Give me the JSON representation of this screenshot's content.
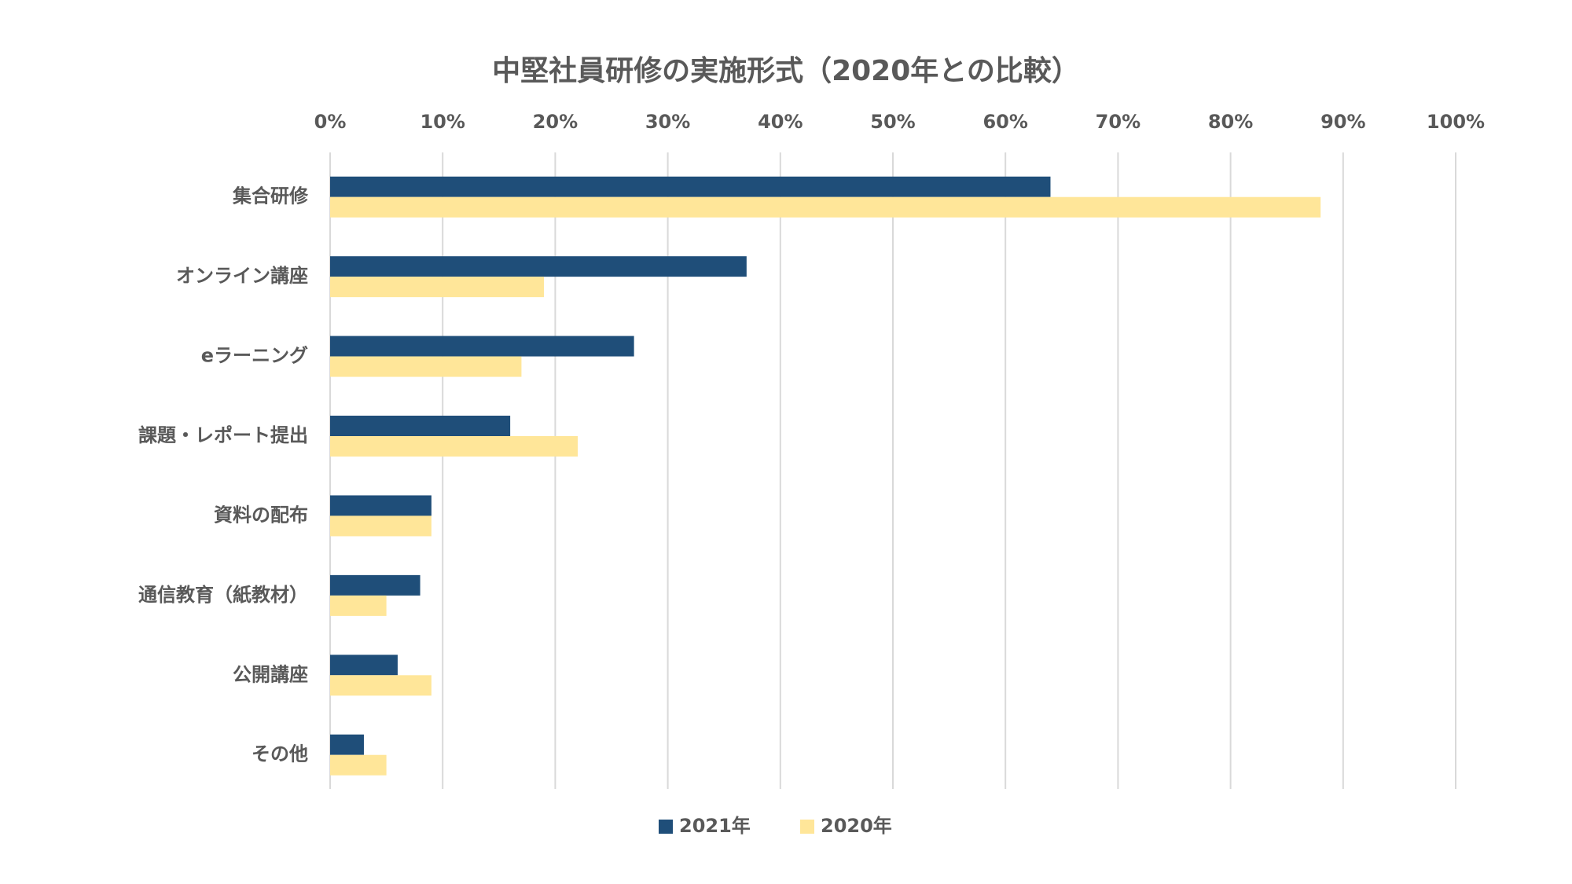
{
  "chart_data": {
    "type": "bar",
    "orientation": "horizontal",
    "title": "中堅社員研修の実施形式（2020年との比較）",
    "xlabel": "",
    "ylabel": "",
    "xlim": [
      0,
      100
    ],
    "x_ticks": [
      "0%",
      "10%",
      "20%",
      "30%",
      "40%",
      "50%",
      "60%",
      "70%",
      "80%",
      "90%",
      "100%"
    ],
    "x_axis_position": "top",
    "grid": true,
    "legend_position": "bottom",
    "categories": [
      "集合研修",
      "オンライン講座",
      "eラーニング",
      "課題・レポート提出",
      "資料の配布",
      "通信教育（紙教材）",
      "公開講座",
      "その他"
    ],
    "series": [
      {
        "name": "2021年",
        "color": "#1f4e79",
        "values": [
          64,
          37,
          27,
          16,
          9,
          8,
          6,
          3
        ]
      },
      {
        "name": "2020年",
        "color": "#ffe699",
        "values": [
          88,
          19,
          17,
          22,
          9,
          5,
          9,
          5
        ]
      }
    ]
  }
}
